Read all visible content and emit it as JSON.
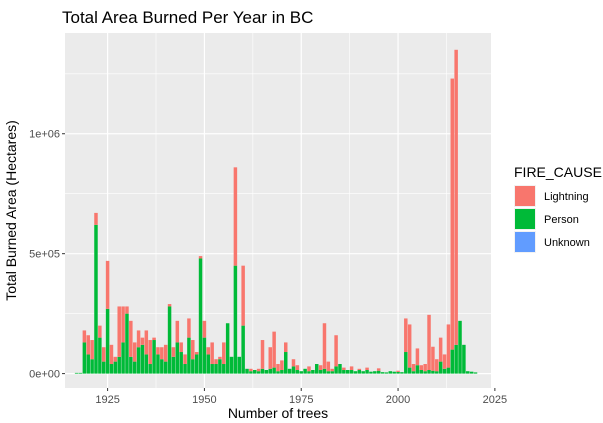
{
  "chart_data": {
    "type": "bar",
    "stacked": true,
    "title": "Total Area Burned Per Year in BC",
    "xlabel": "Number of trees",
    "ylabel": "Total Burned Area (Hectares)",
    "xlim": [
      1914,
      2024
    ],
    "ylim": [
      -60000,
      1420000
    ],
    "x_ticks": [
      1925,
      1950,
      1975,
      2000,
      2025
    ],
    "y_ticks": [
      0,
      500000,
      1000000
    ],
    "y_tick_labels": [
      "0e+00",
      "5e+05",
      "1e+06"
    ],
    "grid": true,
    "legend_position": "right",
    "legend_title": "FIRE_CAUSE",
    "colors": {
      "Lightning": "#F8766D",
      "Person": "#00BA38",
      "Unknown": "#619CFF",
      "panel": "#EBEBEB",
      "grid": "#FFFFFF"
    },
    "years": [
      1917,
      1918,
      1919,
      1920,
      1921,
      1922,
      1923,
      1924,
      1925,
      1926,
      1927,
      1928,
      1929,
      1930,
      1931,
      1932,
      1933,
      1934,
      1935,
      1936,
      1937,
      1938,
      1939,
      1940,
      1941,
      1942,
      1943,
      1944,
      1945,
      1946,
      1947,
      1948,
      1949,
      1950,
      1951,
      1952,
      1953,
      1954,
      1955,
      1956,
      1957,
      1958,
      1959,
      1960,
      1961,
      1962,
      1963,
      1964,
      1965,
      1966,
      1967,
      1968,
      1969,
      1970,
      1971,
      1972,
      1973,
      1974,
      1975,
      1976,
      1977,
      1978,
      1979,
      1980,
      1981,
      1982,
      1983,
      1984,
      1985,
      1986,
      1987,
      1988,
      1989,
      1990,
      1991,
      1992,
      1993,
      1994,
      1995,
      1996,
      1997,
      1998,
      1999,
      2000,
      2001,
      2002,
      2003,
      2004,
      2005,
      2006,
      2007,
      2008,
      2009,
      2010,
      2011,
      2012,
      2013,
      2014,
      2015,
      2016,
      2017,
      2018,
      2019,
      2020
    ],
    "series": [
      {
        "name": "Person",
        "values": [
          3000,
          3000,
          130000,
          80000,
          60000,
          620000,
          150000,
          50000,
          270000,
          40000,
          50000,
          70000,
          130000,
          250000,
          70000,
          50000,
          110000,
          120000,
          80000,
          40000,
          140000,
          80000,
          60000,
          50000,
          280000,
          70000,
          130000,
          90000,
          40000,
          150000,
          60000,
          80000,
          480000,
          150000,
          80000,
          40000,
          40000,
          60000,
          40000,
          210000,
          70000,
          450000,
          70000,
          200000,
          20000,
          10000,
          15000,
          10000,
          20000,
          15000,
          20000,
          25000,
          10000,
          15000,
          90000,
          20000,
          30000,
          15000,
          10000,
          20000,
          10000,
          15000,
          40000,
          15000,
          20000,
          10000,
          10000,
          30000,
          40000,
          15000,
          15000,
          15000,
          10000,
          15000,
          10000,
          15000,
          8000,
          10000,
          12000,
          6000,
          5000,
          10000,
          8000,
          7000,
          6000,
          90000,
          25000,
          10000,
          35000,
          15000,
          10000,
          15000,
          12000,
          10000,
          50000,
          20000,
          25000,
          100000,
          120000,
          220000,
          120000,
          10000,
          8000,
          5000
        ]
      },
      {
        "name": "Lightning",
        "values": [
          0,
          0,
          50000,
          80000,
          80000,
          50000,
          50000,
          60000,
          200000,
          80000,
          20000,
          210000,
          150000,
          30000,
          150000,
          80000,
          70000,
          30000,
          100000,
          100000,
          10000,
          30000,
          50000,
          70000,
          10000,
          40000,
          90000,
          40000,
          40000,
          80000,
          80000,
          10000,
          10000,
          70000,
          30000,
          90000,
          20000,
          10000,
          90000,
          0,
          0,
          410000,
          0,
          250000,
          0,
          10000,
          0,
          10000,
          120000,
          0,
          90000,
          150000,
          30000,
          40000,
          40000,
          0,
          30000,
          20000,
          0,
          0,
          20000,
          0,
          0,
          20000,
          190000,
          40000,
          10000,
          130000,
          0,
          10000,
          0,
          15000,
          0,
          5000,
          0,
          10000,
          0,
          0,
          10000,
          0,
          0,
          0,
          0,
          5000,
          0,
          140000,
          180000,
          30000,
          70000,
          20000,
          30000,
          230000,
          100000,
          50000,
          100000,
          60000,
          180000,
          1130000,
          1230000,
          0,
          0,
          0,
          0,
          0
        ]
      },
      {
        "name": "Unknown",
        "values": [
          0,
          0,
          0,
          0,
          0,
          0,
          0,
          0,
          0,
          0,
          0,
          0,
          0,
          0,
          0,
          0,
          0,
          0,
          0,
          0,
          0,
          0,
          0,
          0,
          0,
          0,
          0,
          0,
          0,
          0,
          0,
          0,
          0,
          0,
          0,
          0,
          0,
          0,
          0,
          0,
          0,
          0,
          0,
          0,
          0,
          0,
          0,
          0,
          0,
          0,
          0,
          0,
          0,
          0,
          0,
          0,
          0,
          0,
          0,
          0,
          0,
          0,
          0,
          0,
          0,
          0,
          0,
          0,
          0,
          0,
          0,
          0,
          0,
          0,
          0,
          0,
          0,
          0,
          0,
          0,
          0,
          0,
          0,
          0,
          0,
          0,
          0,
          0,
          0,
          0,
          0,
          0,
          0,
          0,
          0,
          0,
          0,
          0,
          0,
          0,
          0,
          0,
          0,
          0
        ]
      }
    ]
  }
}
